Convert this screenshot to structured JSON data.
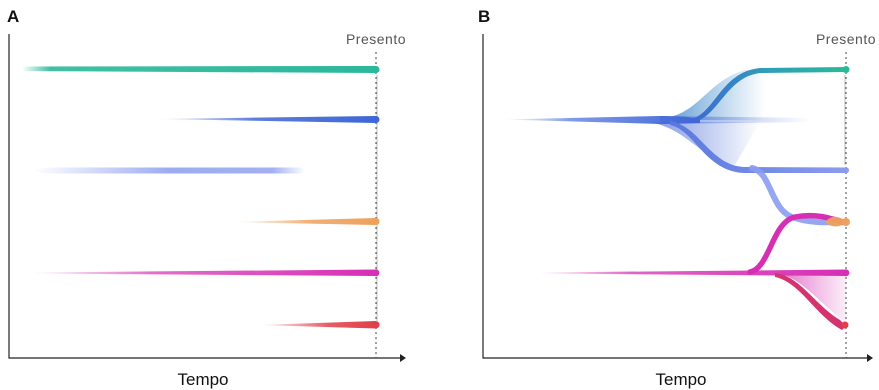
{
  "panel_a": {
    "letter": "A",
    "xlabel": "Tempo",
    "present_label": "Presento"
  },
  "panel_b": {
    "letter": "B",
    "xlabel": "Tempo",
    "present_label": "Presento"
  },
  "colors": {
    "teal": "#2bb89a",
    "blue": "#3f66d6",
    "periwinkle": "#8b9cef",
    "orange": "#eea15c",
    "magenta": "#d62fb4",
    "red": "#e0404a"
  }
}
